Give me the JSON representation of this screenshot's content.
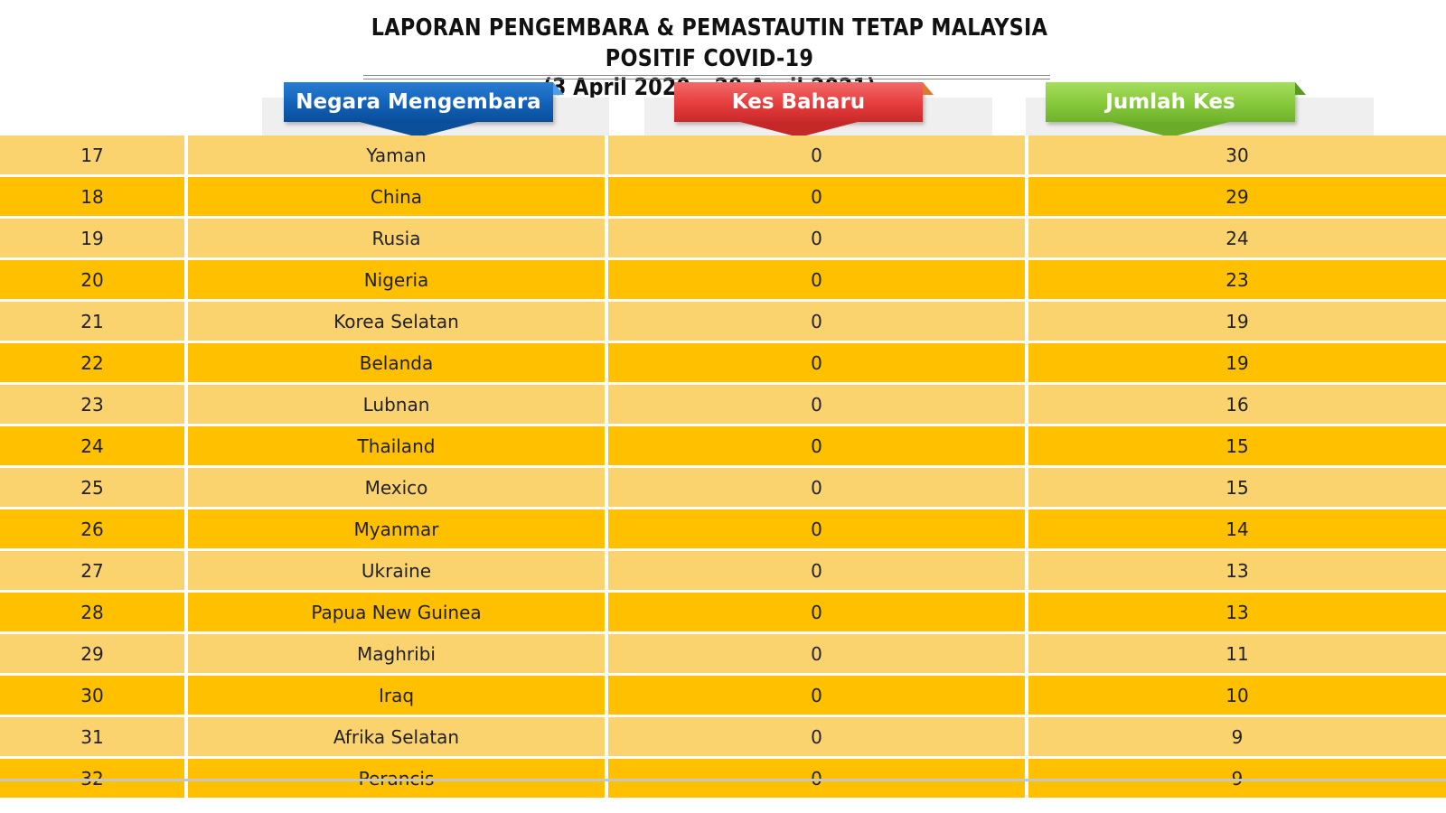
{
  "title": {
    "line1": "LAPORAN PENGEMBARA & PEMASTAUTIN TETAP MALAYSIA POSITIF COVID-19",
    "line2": "(3 April 2020 – 29 April 2021)"
  },
  "headers": {
    "country": "Negara Mengembara",
    "new_cases": "Kes Baharu",
    "total_cases": "Jumlah Kes"
  },
  "colors": {
    "row_light": "#fad36e",
    "row_dark": "#ffc000",
    "header_blue": "#1261b8",
    "header_red": "#e63c3c",
    "header_green": "#86c83a"
  },
  "rows": [
    {
      "no": "17",
      "country": "Yaman",
      "new": "0",
      "total": "30"
    },
    {
      "no": "18",
      "country": "China",
      "new": "0",
      "total": "29"
    },
    {
      "no": "19",
      "country": "Rusia",
      "new": "0",
      "total": "24"
    },
    {
      "no": "20",
      "country": "Nigeria",
      "new": "0",
      "total": "23"
    },
    {
      "no": "21",
      "country": "Korea Selatan",
      "new": "0",
      "total": "19"
    },
    {
      "no": "22",
      "country": "Belanda",
      "new": "0",
      "total": "19"
    },
    {
      "no": "23",
      "country": "Lubnan",
      "new": "0",
      "total": "16"
    },
    {
      "no": "24",
      "country": "Thailand",
      "new": "0",
      "total": "15"
    },
    {
      "no": "25",
      "country": "Mexico",
      "new": "0",
      "total": "15"
    },
    {
      "no": "26",
      "country": "Myanmar",
      "new": "0",
      "total": "14"
    },
    {
      "no": "27",
      "country": "Ukraine",
      "new": "0",
      "total": "13"
    },
    {
      "no": "28",
      "country": "Papua New Guinea",
      "new": "0",
      "total": "13"
    },
    {
      "no": "29",
      "country": "Maghribi",
      "new": "0",
      "total": "11"
    },
    {
      "no": "30",
      "country": "Iraq",
      "new": "0",
      "total": "10"
    },
    {
      "no": "31",
      "country": "Afrika Selatan",
      "new": "0",
      "total": "9"
    },
    {
      "no": "32",
      "country": "Perancis",
      "new": "0",
      "total": "9"
    }
  ]
}
